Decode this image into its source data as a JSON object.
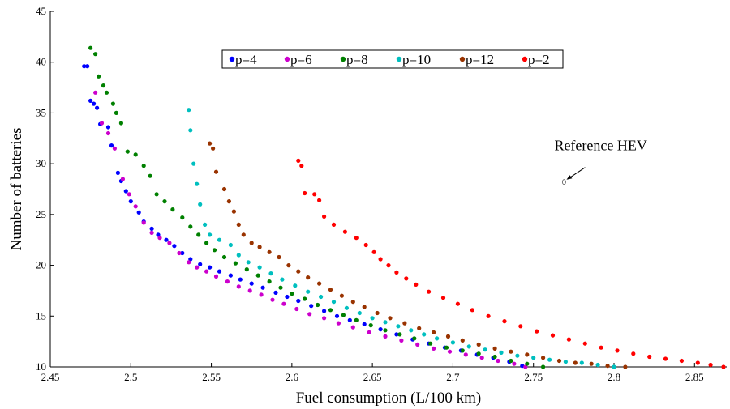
{
  "chart_data": {
    "type": "scatter",
    "xlabel": "Fuel consumption (L/100 km)",
    "ylabel": "Number of batteries",
    "xlim": [
      2.45,
      2.87
    ],
    "ylim": [
      10,
      45
    ],
    "xticks": [
      2.45,
      2.5,
      2.55,
      2.6,
      2.65,
      2.7,
      2.75,
      2.8,
      2.85
    ],
    "xtick_labels": [
      "2.45",
      "2.5",
      "2.55",
      "2.6",
      "2.65",
      "2.7",
      "2.75",
      "2.8",
      "2.85"
    ],
    "yticks": [
      10,
      15,
      20,
      25,
      30,
      35,
      40,
      45
    ],
    "ytick_labels": [
      "10",
      "15",
      "20",
      "25",
      "30",
      "35",
      "40",
      "45"
    ],
    "grid": false,
    "legend_position": "top-center",
    "series": [
      {
        "name": "p=4",
        "color": "#0000ff",
        "points": [
          [
            2.471,
            39.6
          ],
          [
            2.473,
            39.6
          ],
          [
            2.475,
            36.2
          ],
          [
            2.477,
            35.9
          ],
          [
            2.479,
            35.5
          ],
          [
            2.481,
            33.9
          ],
          [
            2.486,
            33.6
          ],
          [
            2.488,
            31.8
          ],
          [
            2.492,
            29.1
          ],
          [
            2.494,
            28.3
          ],
          [
            2.497,
            27.3
          ],
          [
            2.5,
            26.3
          ],
          [
            2.505,
            25.2
          ],
          [
            2.508,
            24.3
          ],
          [
            2.513,
            23.6
          ],
          [
            2.517,
            23.0
          ],
          [
            2.522,
            22.5
          ],
          [
            2.527,
            21.9
          ],
          [
            2.532,
            21.2
          ],
          [
            2.537,
            20.6
          ],
          [
            2.543,
            20.1
          ],
          [
            2.549,
            19.8
          ],
          [
            2.555,
            19.4
          ],
          [
            2.562,
            19.0
          ],
          [
            2.568,
            18.6
          ],
          [
            2.575,
            18.2
          ],
          [
            2.582,
            17.8
          ],
          [
            2.59,
            17.3
          ],
          [
            2.597,
            16.9
          ],
          [
            2.604,
            16.5
          ],
          [
            2.612,
            16.0
          ],
          [
            2.62,
            15.5
          ],
          [
            2.628,
            15.0
          ],
          [
            2.636,
            14.6
          ],
          [
            2.645,
            14.2
          ],
          [
            2.655,
            13.7
          ],
          [
            2.665,
            13.2
          ],
          [
            2.675,
            12.7
          ],
          [
            2.685,
            12.3
          ],
          [
            2.695,
            11.9
          ],
          [
            2.705,
            11.6
          ],
          [
            2.715,
            11.2
          ],
          [
            2.725,
            10.9
          ],
          [
            2.735,
            10.5
          ],
          [
            2.743,
            10.1
          ]
        ]
      },
      {
        "name": "p=6",
        "color": "#cc00cc",
        "points": [
          [
            2.478,
            37.0
          ],
          [
            2.482,
            34.0
          ],
          [
            2.486,
            33.0
          ],
          [
            2.49,
            31.5
          ],
          [
            2.495,
            28.5
          ],
          [
            2.499,
            27.0
          ],
          [
            2.503,
            25.8
          ],
          [
            2.508,
            24.2
          ],
          [
            2.513,
            23.2
          ],
          [
            2.518,
            22.7
          ],
          [
            2.524,
            22.2
          ],
          [
            2.53,
            21.2
          ],
          [
            2.536,
            20.3
          ],
          [
            2.541,
            19.8
          ],
          [
            2.547,
            19.4
          ],
          [
            2.553,
            18.9
          ],
          [
            2.56,
            18.4
          ],
          [
            2.567,
            17.9
          ],
          [
            2.574,
            17.5
          ],
          [
            2.581,
            17.1
          ],
          [
            2.588,
            16.6
          ],
          [
            2.595,
            16.2
          ],
          [
            2.603,
            15.7
          ],
          [
            2.611,
            15.2
          ],
          [
            2.62,
            14.8
          ],
          [
            2.629,
            14.3
          ],
          [
            2.638,
            13.9
          ],
          [
            2.648,
            13.4
          ],
          [
            2.658,
            13.0
          ],
          [
            2.668,
            12.6
          ],
          [
            2.678,
            12.2
          ],
          [
            2.688,
            11.8
          ],
          [
            2.698,
            11.5
          ],
          [
            2.708,
            11.2
          ],
          [
            2.718,
            10.9
          ],
          [
            2.728,
            10.6
          ],
          [
            2.738,
            10.3
          ],
          [
            2.745,
            10.0
          ]
        ]
      },
      {
        "name": "p=8",
        "color": "#008000",
        "points": [
          [
            2.475,
            41.4
          ],
          [
            2.478,
            40.8
          ],
          [
            2.48,
            38.6
          ],
          [
            2.483,
            37.7
          ],
          [
            2.485,
            37.0
          ],
          [
            2.489,
            35.9
          ],
          [
            2.491,
            35.0
          ],
          [
            2.494,
            34.0
          ],
          [
            2.498,
            31.2
          ],
          [
            2.503,
            30.9
          ],
          [
            2.508,
            29.8
          ],
          [
            2.512,
            28.8
          ],
          [
            2.516,
            27.0
          ],
          [
            2.521,
            26.3
          ],
          [
            2.526,
            25.5
          ],
          [
            2.532,
            24.7
          ],
          [
            2.537,
            23.8
          ],
          [
            2.542,
            23.0
          ],
          [
            2.547,
            22.2
          ],
          [
            2.552,
            21.5
          ],
          [
            2.558,
            20.8
          ],
          [
            2.565,
            20.2
          ],
          [
            2.572,
            19.6
          ],
          [
            2.579,
            19.0
          ],
          [
            2.586,
            18.4
          ],
          [
            2.593,
            17.8
          ],
          [
            2.6,
            17.2
          ],
          [
            2.608,
            16.7
          ],
          [
            2.616,
            16.1
          ],
          [
            2.624,
            15.6
          ],
          [
            2.632,
            15.1
          ],
          [
            2.64,
            14.6
          ],
          [
            2.649,
            14.1
          ],
          [
            2.658,
            13.6
          ],
          [
            2.667,
            13.2
          ],
          [
            2.676,
            12.8
          ],
          [
            2.686,
            12.3
          ],
          [
            2.696,
            11.9
          ],
          [
            2.706,
            11.6
          ],
          [
            2.716,
            11.3
          ],
          [
            2.726,
            11.0
          ],
          [
            2.736,
            10.6
          ],
          [
            2.746,
            10.3
          ],
          [
            2.756,
            10.0
          ]
        ]
      },
      {
        "name": "p=10",
        "color": "#00bfbf",
        "points": [
          [
            2.536,
            35.3
          ],
          [
            2.537,
            33.3
          ],
          [
            2.539,
            30.0
          ],
          [
            2.541,
            28.0
          ],
          [
            2.543,
            26.0
          ],
          [
            2.546,
            24.0
          ],
          [
            2.549,
            23.0
          ],
          [
            2.555,
            22.5
          ],
          [
            2.562,
            22.0
          ],
          [
            2.567,
            21.0
          ],
          [
            2.573,
            20.3
          ],
          [
            2.58,
            19.8
          ],
          [
            2.587,
            19.2
          ],
          [
            2.594,
            18.6
          ],
          [
            2.602,
            18.0
          ],
          [
            2.61,
            17.4
          ],
          [
            2.618,
            16.9
          ],
          [
            2.626,
            16.4
          ],
          [
            2.634,
            15.8
          ],
          [
            2.642,
            15.3
          ],
          [
            2.65,
            14.8
          ],
          [
            2.658,
            14.4
          ],
          [
            2.666,
            14.0
          ],
          [
            2.674,
            13.6
          ],
          [
            2.682,
            13.2
          ],
          [
            2.69,
            12.8
          ],
          [
            2.7,
            12.4
          ],
          [
            2.71,
            12.0
          ],
          [
            2.72,
            11.7
          ],
          [
            2.73,
            11.4
          ],
          [
            2.74,
            11.1
          ],
          [
            2.75,
            10.9
          ],
          [
            2.76,
            10.7
          ],
          [
            2.77,
            10.5
          ],
          [
            2.78,
            10.4
          ],
          [
            2.79,
            10.2
          ],
          [
            2.8,
            10.0
          ]
        ]
      },
      {
        "name": "p=12",
        "color": "#993300",
        "points": [
          [
            2.549,
            32.0
          ],
          [
            2.551,
            31.5
          ],
          [
            2.553,
            29.2
          ],
          [
            2.558,
            27.5
          ],
          [
            2.561,
            26.3
          ],
          [
            2.564,
            25.3
          ],
          [
            2.567,
            24.0
          ],
          [
            2.57,
            23.0
          ],
          [
            2.575,
            22.2
          ],
          [
            2.58,
            21.8
          ],
          [
            2.586,
            21.3
          ],
          [
            2.592,
            20.8
          ],
          [
            2.598,
            20.0
          ],
          [
            2.604,
            19.4
          ],
          [
            2.61,
            18.8
          ],
          [
            2.617,
            18.2
          ],
          [
            2.624,
            17.6
          ],
          [
            2.631,
            17.0
          ],
          [
            2.638,
            16.4
          ],
          [
            2.645,
            15.9
          ],
          [
            2.653,
            15.3
          ],
          [
            2.661,
            14.8
          ],
          [
            2.67,
            14.3
          ],
          [
            2.679,
            13.8
          ],
          [
            2.688,
            13.4
          ],
          [
            2.697,
            13.0
          ],
          [
            2.706,
            12.6
          ],
          [
            2.716,
            12.2
          ],
          [
            2.726,
            11.8
          ],
          [
            2.736,
            11.5
          ],
          [
            2.746,
            11.2
          ],
          [
            2.756,
            10.9
          ],
          [
            2.766,
            10.6
          ],
          [
            2.776,
            10.4
          ],
          [
            2.786,
            10.3
          ],
          [
            2.796,
            10.1
          ],
          [
            2.807,
            10.0
          ]
        ]
      },
      {
        "name": "p=2",
        "color": "#ff0000",
        "points": [
          [
            2.604,
            30.3
          ],
          [
            2.606,
            29.8
          ],
          [
            2.608,
            27.1
          ],
          [
            2.614,
            27.0
          ],
          [
            2.617,
            26.4
          ],
          [
            2.62,
            24.8
          ],
          [
            2.626,
            24.0
          ],
          [
            2.633,
            23.3
          ],
          [
            2.64,
            22.7
          ],
          [
            2.646,
            22.0
          ],
          [
            2.651,
            21.3
          ],
          [
            2.655,
            20.6
          ],
          [
            2.66,
            20.0
          ],
          [
            2.665,
            19.3
          ],
          [
            2.671,
            18.7
          ],
          [
            2.677,
            18.1
          ],
          [
            2.685,
            17.4
          ],
          [
            2.694,
            16.8
          ],
          [
            2.703,
            16.2
          ],
          [
            2.712,
            15.6
          ],
          [
            2.722,
            15.0
          ],
          [
            2.732,
            14.5
          ],
          [
            2.742,
            14.0
          ],
          [
            2.752,
            13.5
          ],
          [
            2.762,
            13.1
          ],
          [
            2.772,
            12.7
          ],
          [
            2.782,
            12.3
          ],
          [
            2.792,
            11.9
          ],
          [
            2.802,
            11.6
          ],
          [
            2.812,
            11.3
          ],
          [
            2.822,
            11.0
          ],
          [
            2.832,
            10.8
          ],
          [
            2.842,
            10.6
          ],
          [
            2.852,
            10.4
          ],
          [
            2.86,
            10.2
          ],
          [
            2.868,
            10.0
          ]
        ]
      }
    ],
    "annotations": [
      {
        "text": "Reference HEV",
        "point": [
          2.769,
          28.2
        ]
      }
    ]
  }
}
